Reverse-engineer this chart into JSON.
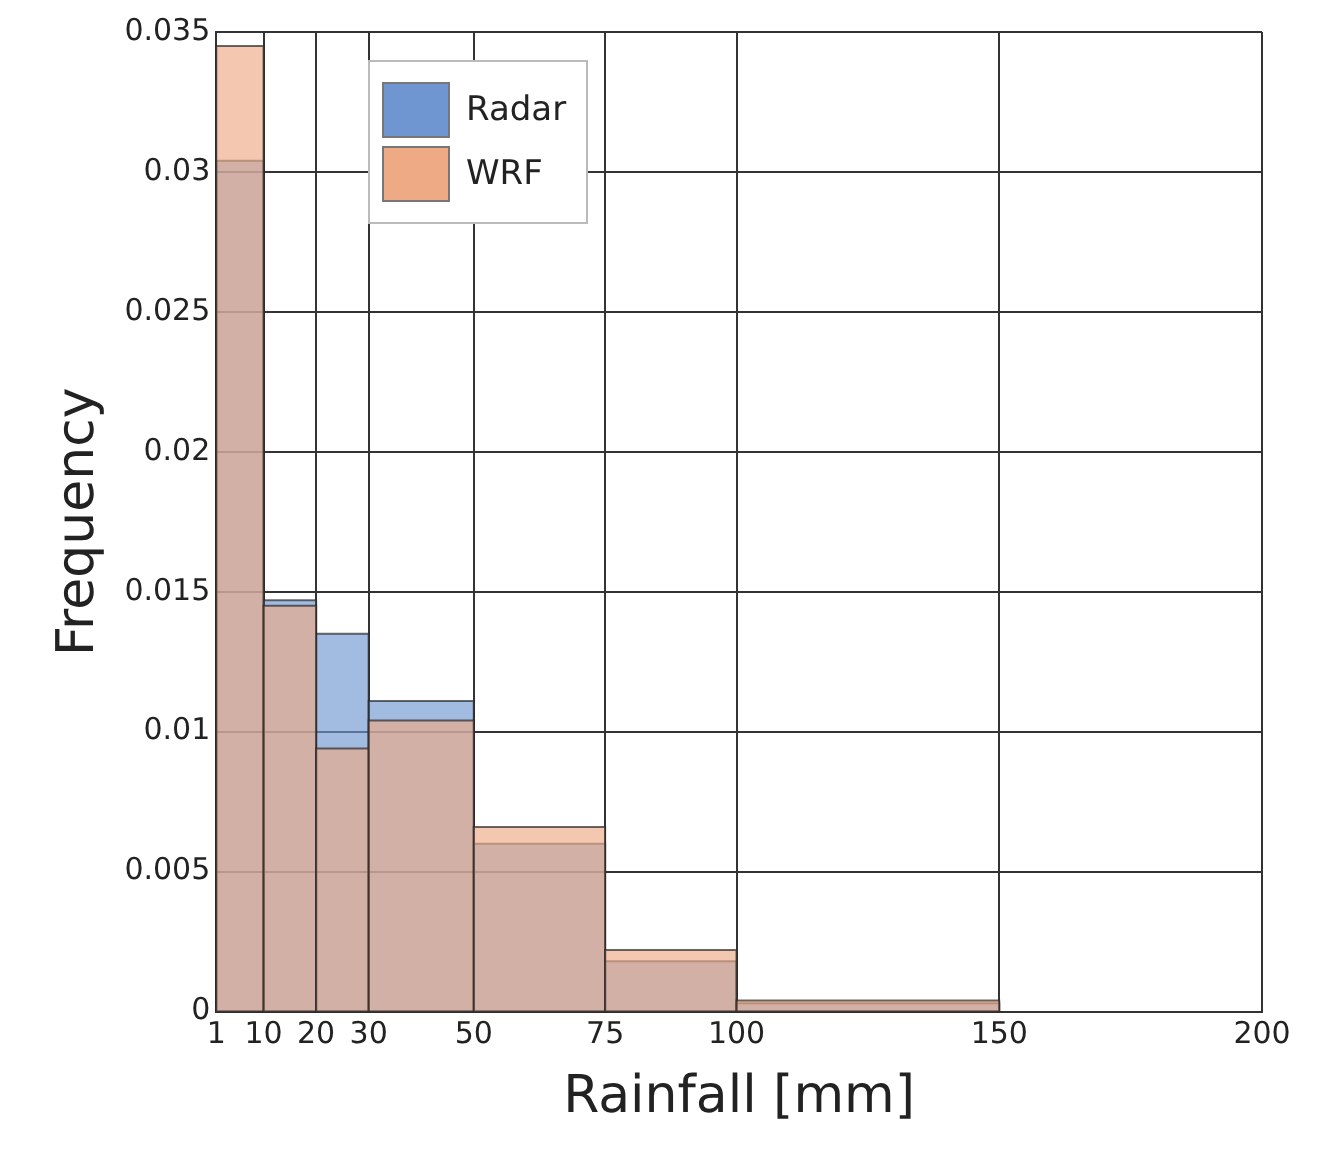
{
  "chart_data": {
    "type": "histogram",
    "xlabel": "Rainfall [mm]",
    "ylabel": "Frequency",
    "bins": [
      1,
      10,
      20,
      30,
      50,
      75,
      100,
      150
    ],
    "series": [
      {
        "name": "Radar",
        "color": "#6f96d1",
        "values": [
          0.0304,
          0.0147,
          0.0135,
          0.0111,
          0.006,
          0.0018,
          0.0003
        ]
      },
      {
        "name": "WRF",
        "color": "#eeaa85",
        "values": [
          0.0345,
          0.0145,
          0.0094,
          0.0104,
          0.0066,
          0.0022,
          0.0004
        ]
      }
    ],
    "xlim": [
      1,
      200
    ],
    "xticks": [
      1,
      10,
      20,
      30,
      50,
      75,
      100,
      150,
      200
    ],
    "ylim": [
      0,
      0.035
    ],
    "yticks": [
      0,
      0.005,
      0.01,
      0.015,
      0.02,
      0.025,
      0.03,
      0.035
    ],
    "grid": true,
    "legend": "top left"
  }
}
